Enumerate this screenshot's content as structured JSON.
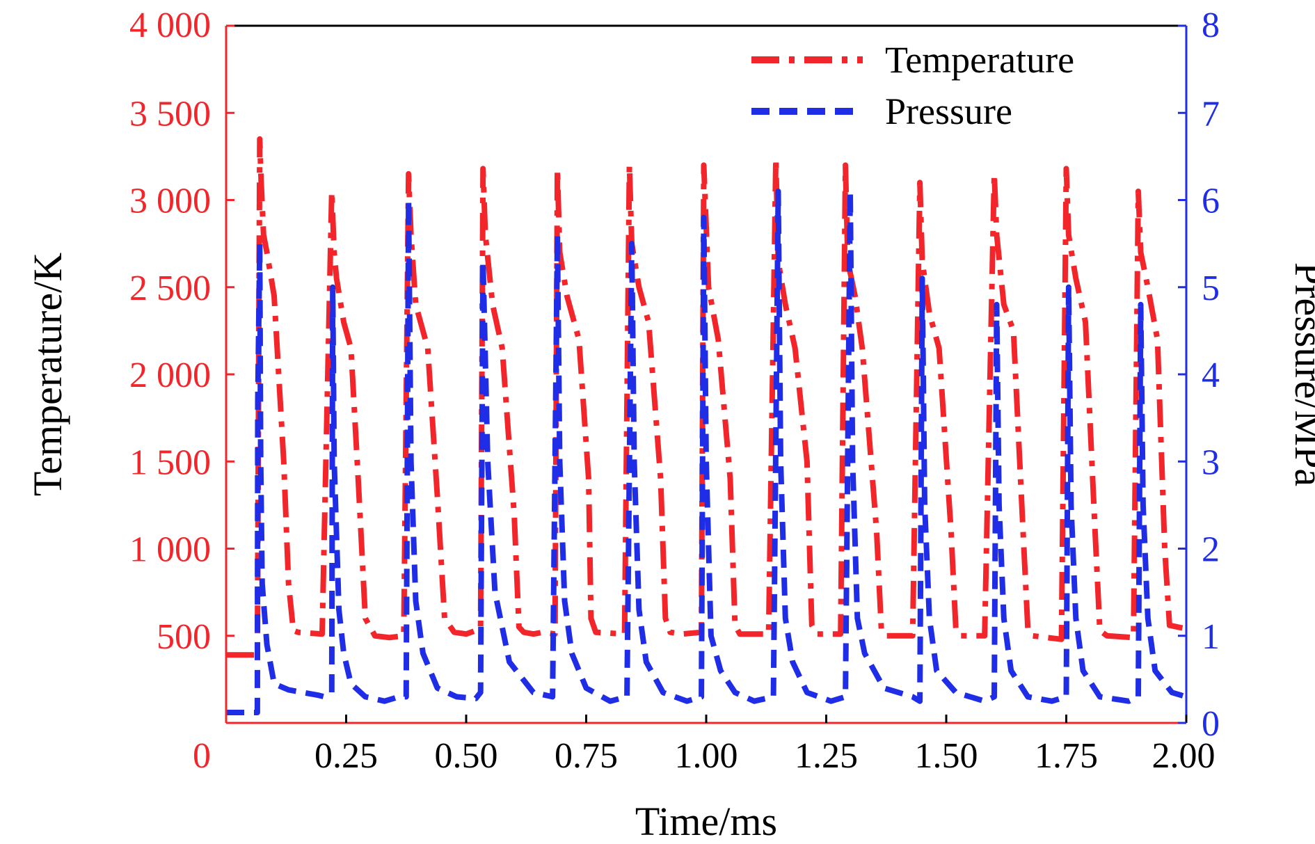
{
  "chart_data": {
    "type": "line",
    "xlabel": "Time/ms",
    "ylabel_left": "Temperature/K",
    "ylabel_right": "Pressure/MPa",
    "xlim": [
      0,
      2.0
    ],
    "ylim_left": [
      0,
      4000
    ],
    "ylim_right": [
      0,
      8
    ],
    "x_ticks": [
      0.25,
      0.5,
      0.75,
      1.0,
      1.25,
      1.5,
      1.75,
      2.0
    ],
    "x_tick_labels": [
      "0.25",
      "0.50",
      "0.75",
      "1.00",
      "1.25",
      "1.50",
      "1.75",
      "2.00"
    ],
    "y_left_ticks": [
      0,
      500,
      1000,
      1500,
      2000,
      2500,
      3000,
      3500,
      4000
    ],
    "y_left_tick_labels": [
      "0",
      "500",
      "1 000",
      "1 500",
      "2 000",
      "2 500",
      "3 000",
      "3 500",
      "4 000"
    ],
    "y_right_ticks": [
      0,
      1,
      2,
      3,
      4,
      5,
      6,
      7,
      8
    ],
    "y_right_tick_labels": [
      "0",
      "1",
      "2",
      "3",
      "4",
      "5",
      "6",
      "7",
      "8"
    ],
    "legend_position": "top-right",
    "colors": {
      "temperature": "#f2262a",
      "pressure": "#1f2ee6"
    },
    "series": [
      {
        "name": "Temperature",
        "axis": "left",
        "line_style": "dash-dot",
        "x": [
          0.0,
          0.065,
          0.07,
          0.073,
          0.078,
          0.085,
          0.1,
          0.12,
          0.13,
          0.14,
          0.15,
          0.2,
          0.22,
          0.225,
          0.23,
          0.245,
          0.26,
          0.275,
          0.29,
          0.31,
          0.34,
          0.37,
          0.38,
          0.385,
          0.395,
          0.42,
          0.44,
          0.455,
          0.475,
          0.5,
          0.53,
          0.535,
          0.54,
          0.555,
          0.575,
          0.6,
          0.61,
          0.62,
          0.64,
          0.66,
          0.685,
          0.69,
          0.695,
          0.71,
          0.735,
          0.755,
          0.76,
          0.77,
          0.83,
          0.84,
          0.845,
          0.86,
          0.88,
          0.905,
          0.915,
          0.925,
          0.95,
          0.99,
          0.995,
          1.005,
          1.025,
          1.05,
          1.06,
          1.07,
          1.13,
          1.145,
          1.15,
          1.165,
          1.185,
          1.21,
          1.22,
          1.23,
          1.28,
          1.29,
          1.295,
          1.31,
          1.325,
          1.355,
          1.365,
          1.375,
          1.43,
          1.445,
          1.45,
          1.465,
          1.485,
          1.51,
          1.52,
          1.53,
          1.58,
          1.6,
          1.605,
          1.62,
          1.64,
          1.66,
          1.67,
          1.68,
          1.74,
          1.75,
          1.755,
          1.77,
          1.79,
          1.81,
          1.82,
          1.835,
          1.89,
          1.9,
          1.905,
          1.92,
          1.94,
          1.955,
          1.965,
          2.0
        ],
        "values": [
          390,
          390,
          3350,
          3100,
          2800,
          2700,
          2450,
          1500,
          800,
          530,
          520,
          510,
          3050,
          2700,
          2550,
          2300,
          2150,
          1400,
          600,
          500,
          490,
          500,
          3150,
          2800,
          2400,
          2150,
          1300,
          600,
          520,
          510,
          540,
          3180,
          2800,
          2400,
          2150,
          1200,
          550,
          520,
          510,
          520,
          510,
          3180,
          2700,
          2450,
          2200,
          1400,
          600,
          520,
          510,
          3200,
          2750,
          2500,
          2300,
          1400,
          600,
          520,
          510,
          520,
          3200,
          2500,
          2200,
          1400,
          560,
          510,
          510,
          3240,
          2650,
          2400,
          2150,
          1500,
          560,
          510,
          510,
          3200,
          2650,
          2450,
          2150,
          1100,
          530,
          500,
          500,
          3100,
          2650,
          2350,
          2150,
          1100,
          540,
          500,
          500,
          3150,
          2800,
          2400,
          2250,
          1100,
          540,
          500,
          480,
          3180,
          2800,
          2550,
          2300,
          1100,
          530,
          500,
          490,
          3050,
          2700,
          2500,
          2200,
          1000,
          560,
          540
        ]
      },
      {
        "name": "Pressure",
        "axis": "right",
        "line_style": "dashed",
        "x": [
          0.0,
          0.065,
          0.066,
          0.07,
          0.072,
          0.075,
          0.085,
          0.1,
          0.13,
          0.16,
          0.19,
          0.205,
          0.22,
          0.222,
          0.225,
          0.235,
          0.245,
          0.26,
          0.29,
          0.33,
          0.36,
          0.375,
          0.38,
          0.385,
          0.395,
          0.41,
          0.44,
          0.48,
          0.52,
          0.53,
          0.535,
          0.545,
          0.56,
          0.59,
          0.64,
          0.68,
          0.69,
          0.695,
          0.705,
          0.72,
          0.75,
          0.8,
          0.835,
          0.845,
          0.85,
          0.86,
          0.875,
          0.91,
          0.96,
          0.99,
          0.995,
          1.0,
          1.01,
          1.03,
          1.06,
          1.1,
          1.14,
          1.15,
          1.155,
          1.165,
          1.18,
          1.21,
          1.26,
          1.29,
          1.3,
          1.305,
          1.315,
          1.33,
          1.37,
          1.43,
          1.445,
          1.45,
          1.455,
          1.465,
          1.48,
          1.52,
          1.58,
          1.6,
          1.605,
          1.61,
          1.62,
          1.635,
          1.67,
          1.72,
          1.75,
          1.755,
          1.76,
          1.77,
          1.785,
          1.82,
          1.88,
          1.9,
          1.905,
          1.91,
          1.92,
          1.935,
          1.97,
          2.0
        ],
        "values": [
          0.12,
          0.12,
          3.7,
          5.5,
          3.0,
          1.6,
          0.9,
          0.45,
          0.38,
          0.35,
          0.32,
          0.3,
          0.35,
          5.0,
          3.0,
          1.3,
          0.8,
          0.45,
          0.3,
          0.25,
          0.3,
          0.3,
          6.0,
          3.0,
          1.4,
          0.8,
          0.4,
          0.3,
          0.28,
          0.35,
          5.3,
          3.0,
          1.5,
          0.7,
          0.35,
          0.3,
          5.6,
          3.0,
          1.4,
          0.8,
          0.4,
          0.25,
          0.3,
          5.5,
          3.0,
          1.3,
          0.7,
          0.35,
          0.25,
          0.3,
          5.8,
          3.0,
          1.0,
          0.6,
          0.35,
          0.25,
          0.3,
          6.1,
          3.0,
          1.2,
          0.7,
          0.35,
          0.25,
          0.3,
          6.1,
          3.0,
          1.2,
          0.8,
          0.4,
          0.3,
          0.25,
          5.1,
          2.5,
          1.2,
          0.6,
          0.35,
          0.25,
          0.3,
          4.8,
          2.5,
          1.2,
          0.6,
          0.3,
          0.25,
          0.3,
          5.0,
          2.5,
          1.2,
          0.6,
          0.3,
          0.25,
          0.3,
          4.8,
          2.5,
          1.2,
          0.6,
          0.35,
          0.3
        ]
      }
    ]
  }
}
